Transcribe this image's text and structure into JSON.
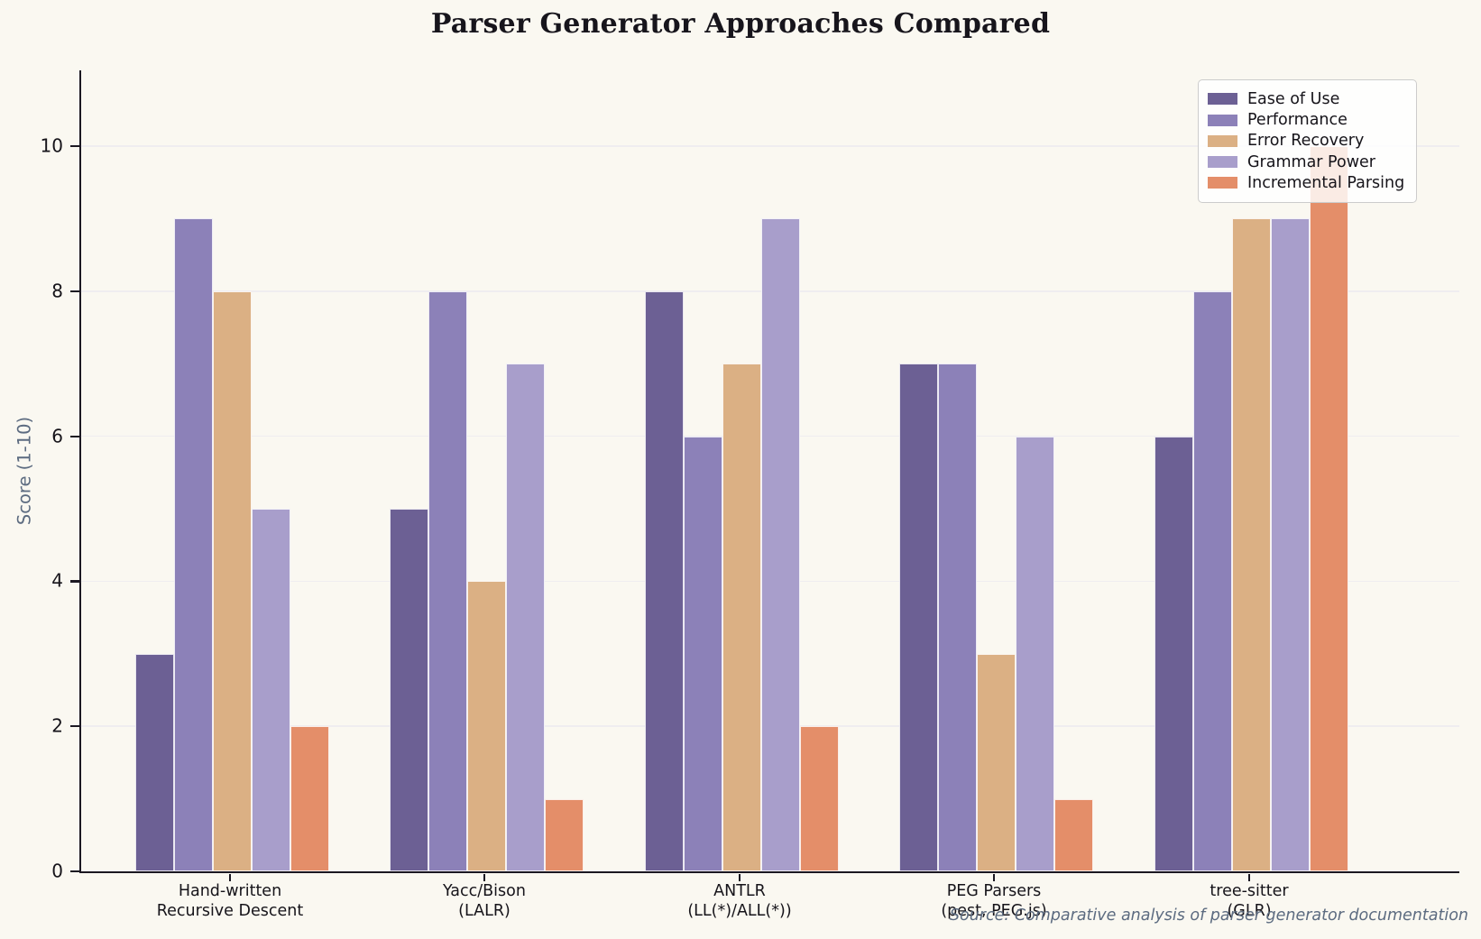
{
  "chart_data": {
    "type": "bar",
    "title": "Parser Generator Approaches Compared",
    "ylabel": "Score (1-10)",
    "ylim": [
      0,
      11
    ],
    "yticks": [
      0,
      2,
      4,
      6,
      8,
      10
    ],
    "grid": true,
    "legend_position": "upper right",
    "categories": [
      {
        "line1": "Hand-written",
        "line2": "Recursive Descent"
      },
      {
        "line1": "Yacc/Bison",
        "line2": "(LALR)"
      },
      {
        "line1": "ANTLR",
        "line2": "(LL(*)/ALL(*))"
      },
      {
        "line1": "PEG Parsers",
        "line2": "(pest, PEG.js)"
      },
      {
        "line1": "tree-sitter",
        "line2": "(GLR)"
      }
    ],
    "series": [
      {
        "name": "Ease of Use",
        "color": "#6c6094",
        "values": [
          3,
          5,
          8,
          7,
          6
        ]
      },
      {
        "name": "Performance",
        "color": "#8c81b8",
        "values": [
          9,
          8,
          6,
          7,
          8
        ]
      },
      {
        "name": "Error Recovery",
        "color": "#dbb084",
        "values": [
          8,
          4,
          7,
          3,
          9
        ]
      },
      {
        "name": "Grammar Power",
        "color": "#a89ecb",
        "values": [
          5,
          7,
          9,
          6,
          9
        ]
      },
      {
        "name": "Incremental Parsing",
        "color": "#e48e69",
        "values": [
          2,
          1,
          2,
          1,
          10
        ]
      }
    ],
    "source_note": "Source: Comparative analysis of parser generator documentation",
    "colors": {
      "background": "#faf8f1",
      "grid": "#efedf0",
      "spine": "#1b1822",
      "muted_text": "#5c6b80",
      "tick_text": "#16141a"
    }
  }
}
